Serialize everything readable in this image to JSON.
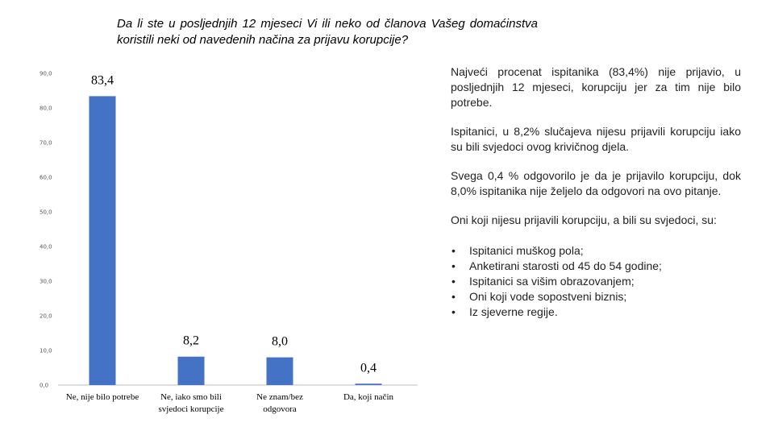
{
  "title": "Da li ste u posljednjih 12 mjeseci Vi ili neko od članova Vašeg domaćinstva koristili neki od navedenih načina za prijavu korupcije?",
  "chart_data": {
    "type": "bar",
    "categories": [
      [
        "Ne, nije bilo potrebe"
      ],
      [
        "Ne, iako smo bili",
        "svjedoci korupcije"
      ],
      [
        "Ne znam/bez",
        "odgovora"
      ],
      [
        "Da, koji način"
      ]
    ],
    "values": [
      83.4,
      8.2,
      8.0,
      0.4
    ],
    "data_labels": [
      "83,4",
      "8,2",
      "8,0",
      "0,4"
    ],
    "ylim": [
      0,
      90
    ],
    "yticks": [
      "0,0",
      "10,0",
      "20,0",
      "30,0",
      "40,0",
      "50,0",
      "60,0",
      "70,0",
      "80,0",
      "90,0"
    ],
    "grid": false,
    "bar_color": "#4472C4"
  },
  "commentary": {
    "paragraphs": [
      "Najveći procenat ispitanika (83,4%) nije prijavio, u posljednjih 12 mjeseci, korupciju jer za tim nije bilo potrebe.",
      "Ispitanici, u 8,2% slučajeva nijesu prijavili korupciju iako su bili svjedoci ovog krivičnog djela.",
      "Svega 0,4 % odgovorilo je da je prijavilo korupciju, dok 8,0% ispitanika nije željelo da odgovori na ovo pitanje.",
      "Oni koji nijesu prijavili korupciju, a bili su svjedoci, su:"
    ],
    "bullets": [
      "Ispitanici muškog pola;",
      "Anketirani starosti  od 45 do 54 godine;",
      "Ispitanici sa višim obrazovanjem;",
      "Oni koji vode sopostveni biznis;",
      "Iz sjeverne regije."
    ]
  }
}
